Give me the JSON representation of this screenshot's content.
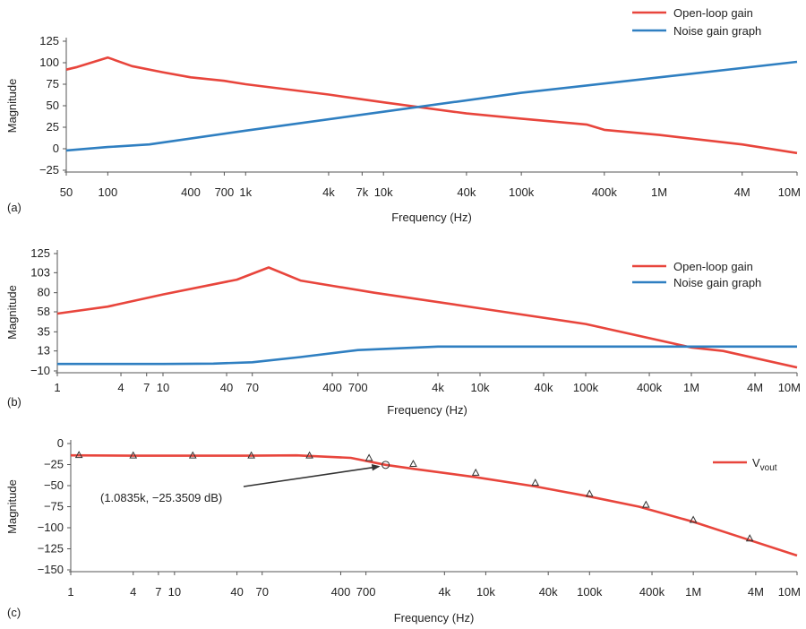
{
  "chart_data": [
    {
      "panel": "(a)",
      "type": "line",
      "xlabel": "Frequency (Hz)",
      "ylabel": "Magnitude",
      "xscale": "log",
      "xlim": [
        50,
        10000000
      ],
      "ylim": [
        -25,
        125
      ],
      "yticks": [
        125,
        100,
        75,
        50,
        25,
        0,
        -25
      ],
      "ytick_labels": [
        "125",
        "100",
        "75",
        "50",
        "25",
        "0",
        "−25"
      ],
      "xticks": [
        50,
        100,
        400,
        700,
        1000,
        4000,
        7000,
        10000,
        40000,
        100000,
        400000,
        1000000,
        4000000,
        10000000
      ],
      "xtick_labels": [
        "50",
        "100",
        "400",
        "700",
        "1k",
        "4k",
        "7k",
        "10k",
        "40k",
        "100k",
        "400k",
        "1M",
        "4M",
        "10M"
      ],
      "legend_position": "top-right",
      "series": [
        {
          "name": "Open-loop gain",
          "color": "#e8453c",
          "x": [
            50,
            60,
            100,
            150,
            250,
            400,
            700,
            1000,
            4000,
            10000,
            40000,
            100000,
            300000,
            400000,
            1000000,
            4000000,
            10000000
          ],
          "y": [
            92,
            95,
            106,
            96,
            89,
            83,
            79,
            75,
            63,
            54,
            41,
            35,
            28,
            22,
            16,
            5,
            -5
          ]
        },
        {
          "name": "Noise gain graph",
          "color": "#2f7fc1",
          "x": [
            50,
            100,
            200,
            1000,
            10000,
            100000,
            1000000,
            10000000
          ],
          "y": [
            -2,
            2,
            5,
            21,
            43,
            65,
            83,
            101
          ]
        }
      ]
    },
    {
      "panel": "(b)",
      "type": "line",
      "xlabel": "Frequency (Hz)",
      "ylabel": "Magnitude",
      "xscale": "log",
      "xlim": [
        1,
        10000000
      ],
      "ylim": [
        -10,
        125
      ],
      "yticks": [
        125,
        103,
        80,
        58,
        35,
        13,
        -10
      ],
      "ytick_labels": [
        "125",
        "103",
        "80",
        "58",
        "35",
        "13",
        "−10"
      ],
      "xticks": [
        1,
        4,
        7,
        10,
        40,
        70,
        400,
        700,
        4000,
        10000,
        40000,
        100000,
        400000,
        1000000,
        4000000,
        10000000
      ],
      "xtick_labels": [
        "1",
        "4",
        "7",
        "10",
        "40",
        "70",
        "400",
        "700",
        "4k",
        "10k",
        "40k",
        "100k",
        "400k",
        "1M",
        "4M",
        "10M"
      ],
      "legend_position": "top-right",
      "series": [
        {
          "name": "Open-loop gain",
          "color": "#e8453c",
          "x": [
            1,
            3,
            10,
            50,
            100,
            200,
            1000,
            10000,
            100000,
            1000000,
            2000000,
            10000000
          ],
          "y": [
            56,
            64,
            78,
            95,
            109,
            94,
            80,
            62,
            44,
            17,
            13,
            -6
          ]
        },
        {
          "name": "Noise gain graph",
          "color": "#2f7fc1",
          "x": [
            1,
            10,
            30,
            70,
            200,
            700,
            4000,
            10000,
            100000,
            1000000,
            10000000
          ],
          "y": [
            -2,
            -2,
            -1.5,
            0,
            6,
            14,
            18,
            18,
            18,
            18,
            18
          ]
        }
      ]
    },
    {
      "panel": "(c)",
      "type": "line",
      "xlabel": "Frequency (Hz)",
      "ylabel": "Magnitude",
      "xscale": "log",
      "xlim": [
        1,
        10000000
      ],
      "ylim": [
        -150,
        0
      ],
      "yticks": [
        0,
        -25,
        -50,
        -75,
        -100,
        -125,
        -150
      ],
      "ytick_labels": [
        "0",
        "−25",
        "−50",
        "−75",
        "−100",
        "−125",
        "−150"
      ],
      "xticks": [
        1,
        4,
        7,
        10,
        40,
        70,
        400,
        700,
        4000,
        10000,
        40000,
        100000,
        400000,
        1000000,
        4000000,
        10000000
      ],
      "xtick_labels": [
        "1",
        "4",
        "7",
        "10",
        "40",
        "70",
        "400",
        "700",
        "4k",
        "10k",
        "40k",
        "100k",
        "400k",
        "1M",
        "4M",
        "10M"
      ],
      "legend_position": "top-right",
      "series": [
        {
          "name": "Vvout",
          "legend_main": "V",
          "legend_sub": "vout",
          "color": "#e8453c",
          "x": [
            1,
            4,
            15,
            50,
            150,
            500,
            1083.5,
            2000,
            8000,
            30000,
            100000,
            300000,
            1000000,
            3000000,
            10000000
          ],
          "y": [
            -14,
            -14.5,
            -14.5,
            -14.5,
            -14,
            -17,
            -25.35,
            -30,
            -40,
            -51,
            -63,
            -75,
            -93,
            -112,
            -133
          ],
          "markers": [
            {
              "x": 1.2,
              "y": -14
            },
            {
              "x": 4,
              "y": -14.5
            },
            {
              "x": 15,
              "y": -14.5
            },
            {
              "x": 55,
              "y": -14.5
            },
            {
              "x": 200,
              "y": -14.5
            },
            {
              "x": 750,
              "y": -17.5
            },
            {
              "x": 1083.5,
              "y": -25.35,
              "circle": true
            },
            {
              "x": 2000,
              "y": -24.5
            },
            {
              "x": 8000,
              "y": -35
            },
            {
              "x": 30000,
              "y": -47
            },
            {
              "x": 100000,
              "y": -60
            },
            {
              "x": 350000,
              "y": -73
            },
            {
              "x": 1000000,
              "y": -91
            },
            {
              "x": 3500000,
              "y": -113
            }
          ]
        }
      ],
      "annotation": {
        "text": "(1.0835k, −25.3509 dB)",
        "x": 1083.5,
        "y": -25.35
      }
    }
  ]
}
